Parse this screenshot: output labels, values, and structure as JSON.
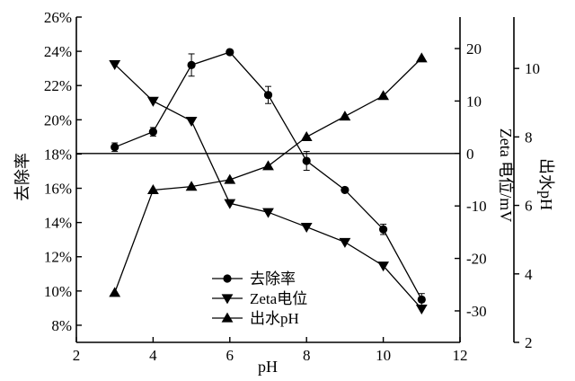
{
  "chart_data": {
    "type": "line",
    "xlabel": "pH",
    "xlim": [
      2,
      12
    ],
    "x_ticks": [
      "2",
      "4",
      "6",
      "8",
      "10",
      "12"
    ],
    "axes": {
      "left": {
        "label": "去除率",
        "lim": [
          7,
          26
        ],
        "ticks": [
          "8%",
          "10%",
          "12%",
          "14%",
          "16%",
          "18%",
          "20%",
          "22%",
          "24%",
          "26%"
        ]
      },
      "zeta": {
        "label": "Zeta 电位/mV",
        "lim": [
          -36,
          26
        ],
        "ticks": [
          "-30",
          "-20",
          "-10",
          "0",
          "10",
          "20"
        ]
      },
      "ph_out": {
        "label": "出水pH",
        "lim": [
          2,
          11.5
        ],
        "ticks": [
          "2",
          "4",
          "6",
          "8",
          "10"
        ]
      }
    },
    "reference_line": {
      "axis": "zeta",
      "value": 0
    },
    "series": [
      {
        "name": "去除率",
        "axis": "left",
        "marker": "circle",
        "x": [
          3,
          4,
          5,
          6,
          7,
          8,
          9,
          10,
          11
        ],
        "y": [
          18.4,
          19.3,
          23.2,
          23.95,
          21.45,
          17.6,
          15.9,
          13.6,
          9.5
        ],
        "err": [
          0.25,
          0.25,
          0.65,
          0,
          0.5,
          0.55,
          0,
          0.3,
          0.35
        ]
      },
      {
        "name": "Zeta电位",
        "axis": "zeta",
        "marker": "triangle-down",
        "x": [
          3,
          4,
          5,
          6,
          7,
          8,
          9,
          10,
          11
        ],
        "y": [
          17,
          10,
          6.2,
          -9.5,
          -11.2,
          -14,
          -16.9,
          -21.4,
          -29.6
        ]
      },
      {
        "name": "出水pH",
        "axis": "ph_out",
        "marker": "triangle-up",
        "x": [
          3,
          4,
          5,
          6,
          7,
          8,
          9,
          10,
          11
        ],
        "y": [
          3.45,
          6.45,
          6.55,
          6.75,
          7.15,
          8.0,
          8.6,
          9.2,
          10.3
        ]
      }
    ],
    "legend": {
      "position": "bottom-center",
      "entries": [
        "去除率",
        "Zeta电位",
        "出水pH"
      ]
    }
  }
}
